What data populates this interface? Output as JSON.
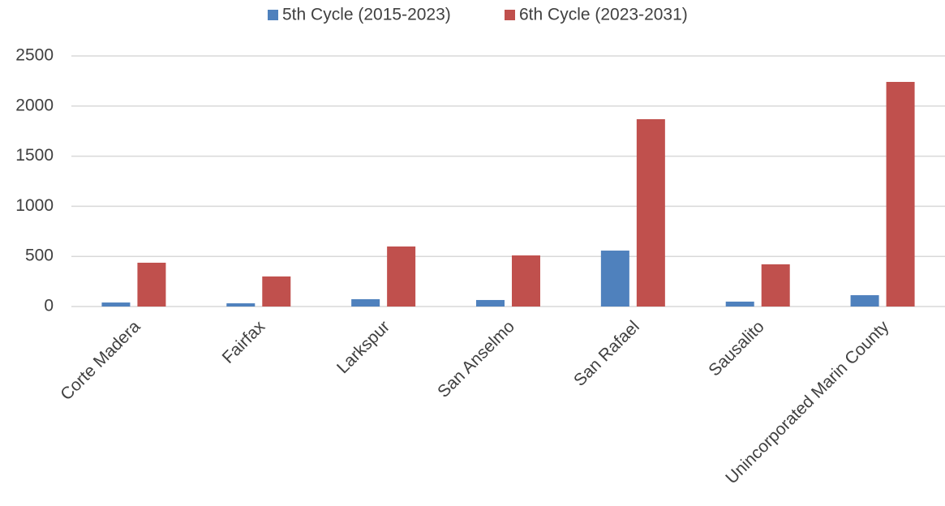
{
  "chart_data": {
    "type": "bar",
    "categories": [
      "Corte Madera",
      "Fairfax",
      "Larkspur",
      "San Anselmo",
      "San Rafael",
      "Sausalito",
      "Unincorporated Marin County"
    ],
    "series": [
      {
        "name": "5th Cycle (2015-2023)",
        "color": "#4f81bd",
        "values": [
          40,
          32,
          73,
          65,
          558,
          49,
          113
        ]
      },
      {
        "name": "6th Cycle (2023-2031)",
        "color": "#c0504d",
        "values": [
          437,
          300,
          599,
          510,
          1869,
          421,
          2241
        ]
      }
    ],
    "ylim": [
      0,
      2500
    ],
    "yticks": [
      0,
      500,
      1000,
      1500,
      2000,
      2500
    ],
    "grid": true,
    "legend": "top"
  }
}
